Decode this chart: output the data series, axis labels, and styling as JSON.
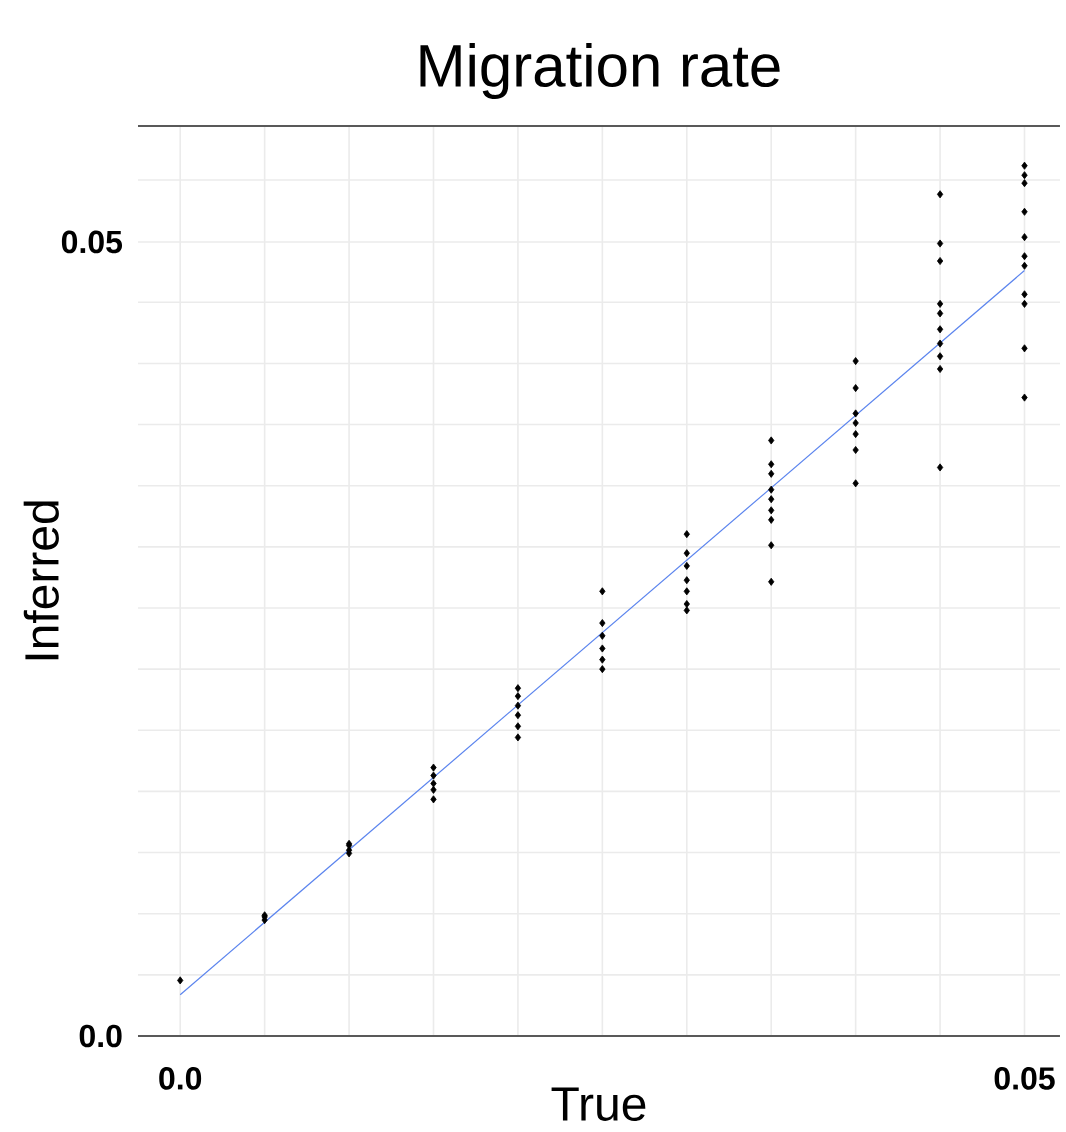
{
  "chart_data": {
    "type": "scatter",
    "title": "Migration rate",
    "xlabel": "True",
    "ylabel": "Inferred",
    "xlim": [
      -0.0025,
      0.0521
    ],
    "ylim": [
      0,
      0.0573
    ],
    "xticks": [
      {
        "value": 0,
        "label": "0.0"
      },
      {
        "value": 0.005,
        "label": null
      },
      {
        "value": 0.01,
        "label": null
      },
      {
        "value": 0.015,
        "label": null
      },
      {
        "value": 0.02,
        "label": null
      },
      {
        "value": 0.025,
        "label": null
      },
      {
        "value": 0.03,
        "label": null
      },
      {
        "value": 0.035,
        "label": null
      },
      {
        "value": 0.04,
        "label": null
      },
      {
        "value": 0.045,
        "label": null
      },
      {
        "value": 0.05,
        "label": "0.05"
      }
    ],
    "yticks": [
      {
        "value": 0,
        "label": "0.0"
      },
      {
        "value": 0.00385,
        "label": null
      },
      {
        "value": 0.0077,
        "label": null
      },
      {
        "value": 0.01155,
        "label": null
      },
      {
        "value": 0.0154,
        "label": null
      },
      {
        "value": 0.01925,
        "label": null
      },
      {
        "value": 0.0231,
        "label": null
      },
      {
        "value": 0.02695,
        "label": null
      },
      {
        "value": 0.0308,
        "label": null
      },
      {
        "value": 0.03465,
        "label": null
      },
      {
        "value": 0.0385,
        "label": null
      },
      {
        "value": 0.04235,
        "label": null
      },
      {
        "value": 0.0462,
        "label": null
      },
      {
        "value": 0.05,
        "label": "0.05"
      },
      {
        "value": 0.0539,
        "label": null
      }
    ],
    "grid": true,
    "marker": "diamond",
    "series": [
      {
        "type": "scatter",
        "color": "#000000",
        "x": [
          0,
          0.005,
          0.005,
          0.005,
          0.01,
          0.01,
          0.01,
          0.01,
          0.015,
          0.015,
          0.015,
          0.015,
          0.015,
          0.02,
          0.02,
          0.02,
          0.02,
          0.02,
          0.02,
          0.025,
          0.025,
          0.025,
          0.025,
          0.025,
          0.025,
          0.03,
          0.03,
          0.03,
          0.03,
          0.03,
          0.03,
          0.03,
          0.035,
          0.035,
          0.035,
          0.035,
          0.035,
          0.035,
          0.035,
          0.035,
          0.035,
          0.04,
          0.04,
          0.04,
          0.04,
          0.04,
          0.04,
          0.04,
          0.045,
          0.045,
          0.045,
          0.045,
          0.045,
          0.045,
          0.045,
          0.045,
          0.045,
          0.045,
          0.05,
          0.05,
          0.05,
          0.05,
          0.05,
          0.05,
          0.05,
          0.05,
          0.05,
          0.05,
          0.05
        ],
        "values": [
          0.0035,
          0.0075,
          0.0073,
          0.0076,
          0.0121,
          0.0117,
          0.0115,
          0.012,
          0.0169,
          0.0164,
          0.0159,
          0.0155,
          0.0149,
          0.0219,
          0.0214,
          0.0208,
          0.0202,
          0.0195,
          0.0188,
          0.028,
          0.026,
          0.0252,
          0.0244,
          0.0237,
          0.0231,
          0.0316,
          0.0304,
          0.0296,
          0.0287,
          0.028,
          0.0272,
          0.0268,
          0.0375,
          0.036,
          0.0354,
          0.0344,
          0.0338,
          0.0331,
          0.0325,
          0.0309,
          0.0286,
          0.0425,
          0.0408,
          0.0392,
          0.0386,
          0.0379,
          0.0369,
          0.0348,
          0.053,
          0.0499,
          0.0488,
          0.0461,
          0.0455,
          0.0445,
          0.0436,
          0.0428,
          0.042,
          0.0358,
          0.0548,
          0.0542,
          0.0537,
          0.0519,
          0.0503,
          0.0491,
          0.0485,
          0.0467,
          0.0461,
          0.0433,
          0.0402
        ]
      },
      {
        "type": "line",
        "marker": "none",
        "color": "#5b84ee",
        "x": [
          0,
          0.05
        ],
        "values": [
          0.0026,
          0.0482
        ]
      }
    ]
  }
}
